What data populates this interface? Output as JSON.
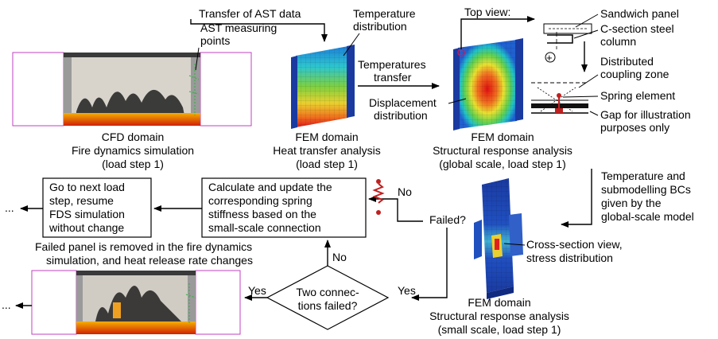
{
  "cfd_top": {
    "ast_transfer": "Transfer of AST data",
    "ast_points_1": "AST measuring",
    "ast_points_2": "points",
    "domain": "CFD domain",
    "sub1": "Fire dynamics simulation",
    "sub2": "(load step 1)"
  },
  "heat": {
    "temp_dist_1": "Temperature",
    "temp_dist_2": "distribution",
    "temps_transfer_1": "Temperatures",
    "temps_transfer_2": "transfer",
    "domain": "FEM domain",
    "sub1": "Heat transfer analysis",
    "sub2": "(load step 1)"
  },
  "global": {
    "top_view": "Top view:",
    "disp_1": "Displacement",
    "disp_2": "distribution",
    "domain": "FEM domain",
    "sub1": "Structural response analysis",
    "sub2": "(global scale, load step 1)"
  },
  "detail": {
    "sandwich": "Sandwich panel",
    "csection_1": "C-section steel",
    "csection_2": "column",
    "coupling_1": "Distributed",
    "coupling_2": "coupling zone",
    "spring": "Spring element",
    "gap_1": "Gap for illustration",
    "gap_2": "purposes only"
  },
  "submodel": {
    "bcs_1": "Temperature and",
    "bcs_2": "submodelling BCs",
    "bcs_3": "given by the",
    "bcs_4": "global-scale model",
    "cross_1": "Cross-section view,",
    "cross_2": "stress distribution",
    "domain": "FEM domain",
    "sub1": "Structural response analysis",
    "sub2": "(small scale, load step 1)"
  },
  "flow": {
    "failed_q": "Failed?",
    "no1": "No",
    "no2": "No",
    "yes1": "Yes",
    "yes2": "Yes",
    "two_conn_1": "Two connec-",
    "two_conn_2": "tions failed?",
    "calc_1": "Calculate and update the",
    "calc_2": "corresponding spring",
    "calc_3": "stiffness based on the",
    "calc_4": "small-scale connection",
    "next_1": "Go to next load",
    "next_2": "step, resume",
    "next_3": "FDS simulation",
    "next_4": "without change",
    "removed_1": "Failed panel is removed in the fire dynamics",
    "removed_2": "simulation, and heat release rate changes",
    "dots1": "...",
    "dots2": "..."
  },
  "colors": {
    "arrow": "#000000",
    "cfd_wire": "#c040c0",
    "smoke": "#2a2a2a",
    "fire": "#e03000",
    "spring": "#c02020",
    "fem_blue": "#1a3aa0"
  }
}
